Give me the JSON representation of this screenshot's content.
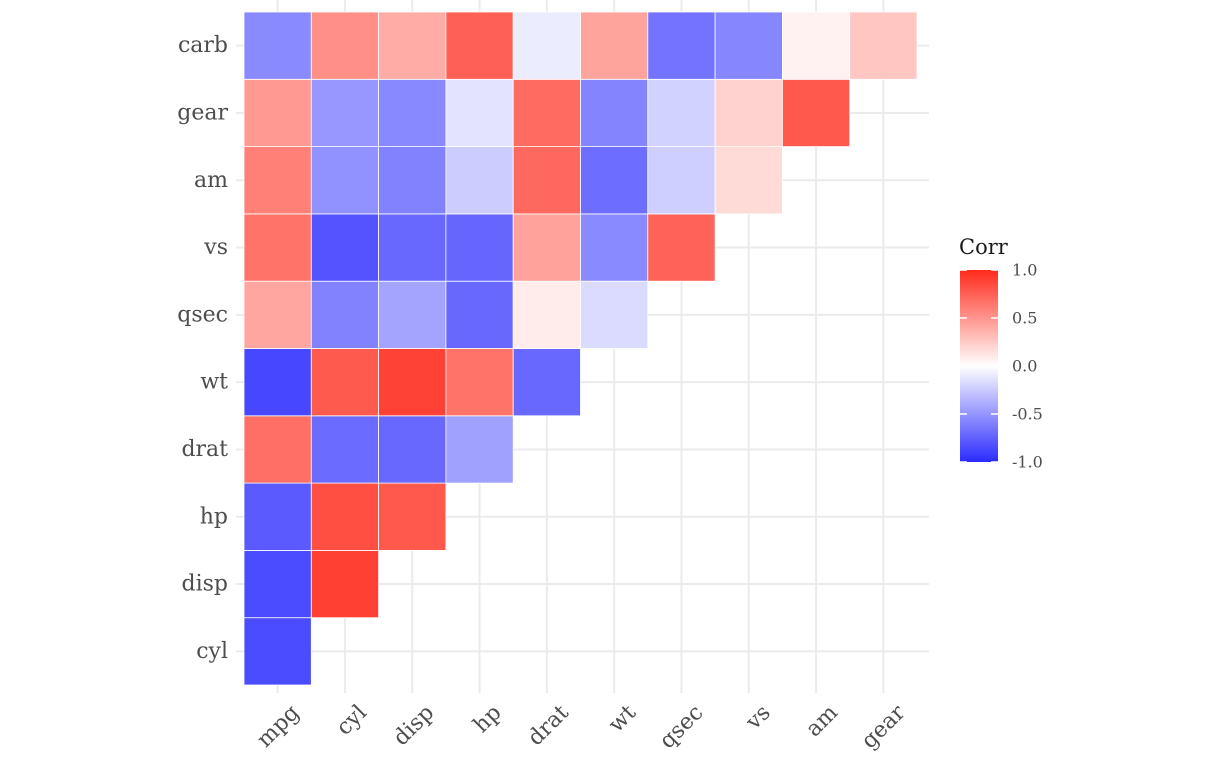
{
  "chart_data": {
    "type": "heatmap",
    "title": "",
    "xlabel": "",
    "ylabel": "",
    "x_categories": [
      "mpg",
      "cyl",
      "disp",
      "hp",
      "drat",
      "wt",
      "qsec",
      "vs",
      "am",
      "gear"
    ],
    "y_categories": [
      "cyl",
      "disp",
      "hp",
      "drat",
      "wt",
      "qsec",
      "vs",
      "am",
      "gear",
      "carb"
    ],
    "cells": [
      {
        "x": "mpg",
        "y": "cyl",
        "value": -0.85
      },
      {
        "x": "mpg",
        "y": "disp",
        "value": -0.85
      },
      {
        "x": "cyl",
        "y": "disp",
        "value": 0.9
      },
      {
        "x": "mpg",
        "y": "hp",
        "value": -0.78
      },
      {
        "x": "cyl",
        "y": "hp",
        "value": 0.83
      },
      {
        "x": "disp",
        "y": "hp",
        "value": 0.79
      },
      {
        "x": "mpg",
        "y": "drat",
        "value": 0.68
      },
      {
        "x": "cyl",
        "y": "drat",
        "value": -0.7
      },
      {
        "x": "disp",
        "y": "drat",
        "value": -0.71
      },
      {
        "x": "hp",
        "y": "drat",
        "value": -0.45
      },
      {
        "x": "mpg",
        "y": "wt",
        "value": -0.87
      },
      {
        "x": "cyl",
        "y": "wt",
        "value": 0.78
      },
      {
        "x": "disp",
        "y": "wt",
        "value": 0.89
      },
      {
        "x": "hp",
        "y": "wt",
        "value": 0.66
      },
      {
        "x": "drat",
        "y": "wt",
        "value": -0.71
      },
      {
        "x": "mpg",
        "y": "qsec",
        "value": 0.42
      },
      {
        "x": "cyl",
        "y": "qsec",
        "value": -0.59
      },
      {
        "x": "disp",
        "y": "qsec",
        "value": -0.43
      },
      {
        "x": "hp",
        "y": "qsec",
        "value": -0.71
      },
      {
        "x": "drat",
        "y": "qsec",
        "value": 0.09
      },
      {
        "x": "wt",
        "y": "qsec",
        "value": -0.17
      },
      {
        "x": "mpg",
        "y": "vs",
        "value": 0.66
      },
      {
        "x": "cyl",
        "y": "vs",
        "value": -0.81
      },
      {
        "x": "disp",
        "y": "vs",
        "value": -0.71
      },
      {
        "x": "hp",
        "y": "vs",
        "value": -0.72
      },
      {
        "x": "drat",
        "y": "vs",
        "value": 0.44
      },
      {
        "x": "wt",
        "y": "vs",
        "value": -0.55
      },
      {
        "x": "qsec",
        "y": "vs",
        "value": 0.74
      },
      {
        "x": "mpg",
        "y": "am",
        "value": 0.6
      },
      {
        "x": "cyl",
        "y": "am",
        "value": -0.52
      },
      {
        "x": "disp",
        "y": "am",
        "value": -0.59
      },
      {
        "x": "hp",
        "y": "am",
        "value": -0.24
      },
      {
        "x": "drat",
        "y": "am",
        "value": 0.71
      },
      {
        "x": "wt",
        "y": "am",
        "value": -0.69
      },
      {
        "x": "qsec",
        "y": "am",
        "value": -0.23
      },
      {
        "x": "vs",
        "y": "am",
        "value": 0.17
      },
      {
        "x": "mpg",
        "y": "gear",
        "value": 0.48
      },
      {
        "x": "cyl",
        "y": "gear",
        "value": -0.49
      },
      {
        "x": "disp",
        "y": "gear",
        "value": -0.56
      },
      {
        "x": "hp",
        "y": "gear",
        "value": -0.13
      },
      {
        "x": "drat",
        "y": "gear",
        "value": 0.7
      },
      {
        "x": "wt",
        "y": "gear",
        "value": -0.58
      },
      {
        "x": "qsec",
        "y": "gear",
        "value": -0.21
      },
      {
        "x": "vs",
        "y": "gear",
        "value": 0.21
      },
      {
        "x": "am",
        "y": "gear",
        "value": 0.79
      },
      {
        "x": "mpg",
        "y": "carb",
        "value": -0.55
      },
      {
        "x": "cyl",
        "y": "carb",
        "value": 0.53
      },
      {
        "x": "disp",
        "y": "carb",
        "value": 0.39
      },
      {
        "x": "hp",
        "y": "carb",
        "value": 0.75
      },
      {
        "x": "drat",
        "y": "carb",
        "value": -0.09
      },
      {
        "x": "wt",
        "y": "carb",
        "value": 0.43
      },
      {
        "x": "qsec",
        "y": "carb",
        "value": -0.66
      },
      {
        "x": "vs",
        "y": "carb",
        "value": -0.57
      },
      {
        "x": "am",
        "y": "carb",
        "value": 0.06
      },
      {
        "x": "gear",
        "y": "carb",
        "value": 0.27
      }
    ],
    "legend": {
      "title": "Corr",
      "ticks": [
        1.0,
        0.5,
        0.0,
        -0.5,
        -1.0
      ],
      "tick_labels": [
        "1.0",
        "0.5",
        "0.0",
        "-0.5",
        "-1.0"
      ],
      "range": [
        -1,
        1
      ],
      "placement": "right"
    },
    "colors": {
      "low": "#2b2bff",
      "mid": "#ffffff",
      "high": "#ff2b1c",
      "grid": "#ebebeb",
      "tile_border": "#ffffff"
    },
    "grid": true
  }
}
